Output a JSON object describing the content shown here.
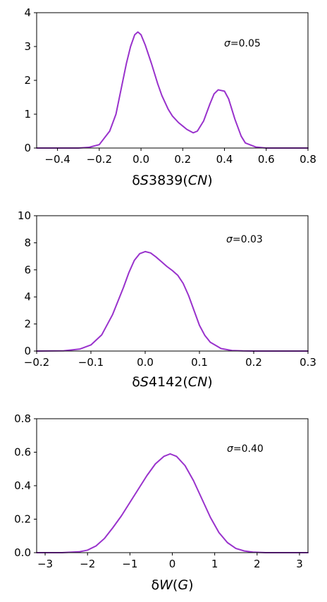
{
  "line_color": "#9932CC",
  "chart_data": [
    {
      "type": "line",
      "xlabel": "δS3839(CN)",
      "ylabel": "",
      "annotation": "σ=0.05",
      "xlim": [
        -0.5,
        0.8
      ],
      "ylim": [
        0,
        4
      ],
      "xticks": [
        "−0.4",
        "−0.2",
        "0.0",
        "0.2",
        "0.4",
        "0.6",
        "0.8"
      ],
      "xtick_values": [
        -0.4,
        -0.2,
        0.0,
        0.2,
        0.4,
        0.6,
        0.8
      ],
      "yticks": [
        "0",
        "1",
        "2",
        "3",
        "4"
      ],
      "ytick_values": [
        0,
        1,
        2,
        3,
        4
      ],
      "grid": false,
      "series": [
        {
          "x": [
            -0.5,
            -0.3,
            -0.25,
            -0.2,
            -0.15,
            -0.12,
            -0.1,
            -0.07,
            -0.05,
            -0.03,
            -0.015,
            0.0,
            0.02,
            0.05,
            0.08,
            0.1,
            0.13,
            0.15,
            0.18,
            0.2,
            0.22,
            0.25,
            0.27,
            0.3,
            0.33,
            0.35,
            0.37,
            0.4,
            0.42,
            0.45,
            0.48,
            0.5,
            0.55,
            0.6,
            0.7,
            0.8
          ],
          "y": [
            0.0,
            0.0,
            0.02,
            0.1,
            0.5,
            1.0,
            1.6,
            2.5,
            3.0,
            3.35,
            3.43,
            3.35,
            3.05,
            2.5,
            1.9,
            1.55,
            1.15,
            0.95,
            0.75,
            0.65,
            0.55,
            0.45,
            0.5,
            0.8,
            1.3,
            1.6,
            1.72,
            1.68,
            1.45,
            0.85,
            0.35,
            0.15,
            0.03,
            0.0,
            0.0,
            0.0
          ]
        }
      ]
    },
    {
      "type": "line",
      "xlabel": "δS4142(CN)",
      "ylabel": "",
      "annotation": "σ=0.03",
      "xlim": [
        -0.2,
        0.3
      ],
      "ylim": [
        0,
        10
      ],
      "xticks": [
        "−0.2",
        "−0.1",
        "0.0",
        "0.1",
        "0.2",
        "0.3"
      ],
      "xtick_values": [
        -0.2,
        -0.1,
        0.0,
        0.1,
        0.2,
        0.3
      ],
      "yticks": [
        "0",
        "2",
        "4",
        "6",
        "8",
        "10"
      ],
      "ytick_values": [
        0,
        2,
        4,
        6,
        8,
        10
      ],
      "grid": false,
      "series": [
        {
          "x": [
            -0.2,
            -0.15,
            -0.12,
            -0.1,
            -0.08,
            -0.06,
            -0.04,
            -0.03,
            -0.02,
            -0.01,
            0.0,
            0.01,
            0.02,
            0.03,
            0.04,
            0.05,
            0.06,
            0.07,
            0.08,
            0.09,
            0.1,
            0.11,
            0.12,
            0.14,
            0.16,
            0.18,
            0.2,
            0.25,
            0.3
          ],
          "y": [
            0.0,
            0.02,
            0.15,
            0.45,
            1.2,
            2.7,
            4.7,
            5.8,
            6.7,
            7.2,
            7.35,
            7.25,
            6.95,
            6.6,
            6.25,
            5.95,
            5.6,
            5.0,
            4.1,
            3.0,
            1.9,
            1.15,
            0.65,
            0.18,
            0.04,
            0.01,
            0.0,
            0.0,
            0.0
          ]
        }
      ]
    },
    {
      "type": "line",
      "xlabel": "δW(G)",
      "ylabel": "",
      "annotation": "σ=0.40",
      "xlim": [
        -3.2,
        3.2
      ],
      "ylim": [
        0,
        0.8
      ],
      "xticks": [
        "−3",
        "−2",
        "−1",
        "0",
        "1",
        "2",
        "3"
      ],
      "xtick_values": [
        -3,
        -2,
        -1,
        0,
        1,
        2,
        3
      ],
      "yticks": [
        "0.0",
        "0.2",
        "0.4",
        "0.6",
        "0.8"
      ],
      "ytick_values": [
        0.0,
        0.2,
        0.4,
        0.6,
        0.8
      ],
      "grid": false,
      "series": [
        {
          "x": [
            -3.2,
            -2.6,
            -2.2,
            -2.0,
            -1.8,
            -1.6,
            -1.4,
            -1.2,
            -1.0,
            -0.8,
            -0.6,
            -0.4,
            -0.2,
            -0.05,
            0.1,
            0.3,
            0.5,
            0.7,
            0.9,
            1.1,
            1.3,
            1.5,
            1.7,
            1.9,
            2.2,
            2.6,
            3.2
          ],
          "y": [
            0.0,
            0.0,
            0.005,
            0.015,
            0.04,
            0.085,
            0.15,
            0.22,
            0.3,
            0.38,
            0.46,
            0.53,
            0.575,
            0.59,
            0.575,
            0.52,
            0.43,
            0.32,
            0.21,
            0.12,
            0.06,
            0.025,
            0.01,
            0.003,
            0.0,
            0.0,
            0.0
          ]
        }
      ]
    }
  ]
}
